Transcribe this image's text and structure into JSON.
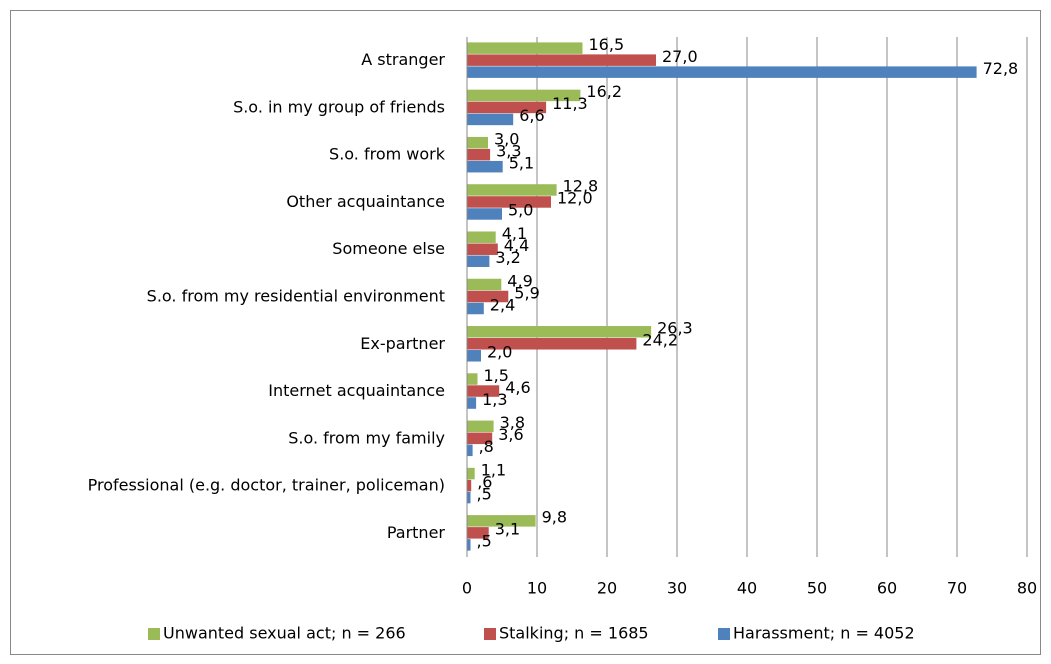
{
  "chart_data": {
    "type": "bar",
    "orientation": "horizontal",
    "categories": [
      "A stranger",
      "S.o. in my group of friends",
      "S.o. from work",
      "Other acquaintance",
      "Someone else",
      "S.o. from my residential environment",
      "Ex-partner",
      "Internet acquaintance",
      "S.o. from my family",
      "Professional (e.g. doctor, trainer, policeman)",
      "Partner"
    ],
    "series": [
      {
        "name": "Unwanted sexual act; n = 266",
        "color": "#9bbb59",
        "values": [
          16.5,
          16.2,
          3.0,
          12.8,
          4.1,
          4.9,
          26.3,
          1.5,
          3.8,
          1.1,
          9.8
        ],
        "value_labels": [
          "16,5",
          "16,2",
          "3,0",
          "12,8",
          "4,1",
          "4,9",
          "26,3",
          "1,5",
          "3,8",
          "1,1",
          "9,8"
        ]
      },
      {
        "name": "Stalking; n = 1685",
        "color": "#c0504d",
        "values": [
          27.0,
          11.3,
          3.3,
          12.0,
          4.4,
          5.9,
          24.2,
          4.6,
          3.6,
          0.6,
          3.1
        ],
        "value_labels": [
          "27,0",
          "11,3",
          "3,3",
          "12,0",
          "4,4",
          "5,9",
          "24,2",
          "4,6",
          "3,6",
          ",6",
          "3,1"
        ]
      },
      {
        "name": "Harassment; n = 4052",
        "color": "#4f81bd",
        "values": [
          72.8,
          6.6,
          5.1,
          5.0,
          3.2,
          2.4,
          2.0,
          1.3,
          0.8,
          0.5,
          0.5
        ],
        "value_labels": [
          "72,8",
          "6,6",
          "5,1",
          "5,0",
          "3,2",
          "2,4",
          "2,0",
          "1,3",
          ",8",
          ",5",
          ",5"
        ]
      }
    ],
    "xlim": [
      0,
      80
    ],
    "xticks": [
      0,
      10,
      20,
      30,
      40,
      50,
      60,
      70,
      80
    ],
    "grid": true,
    "legend": "bottom"
  }
}
